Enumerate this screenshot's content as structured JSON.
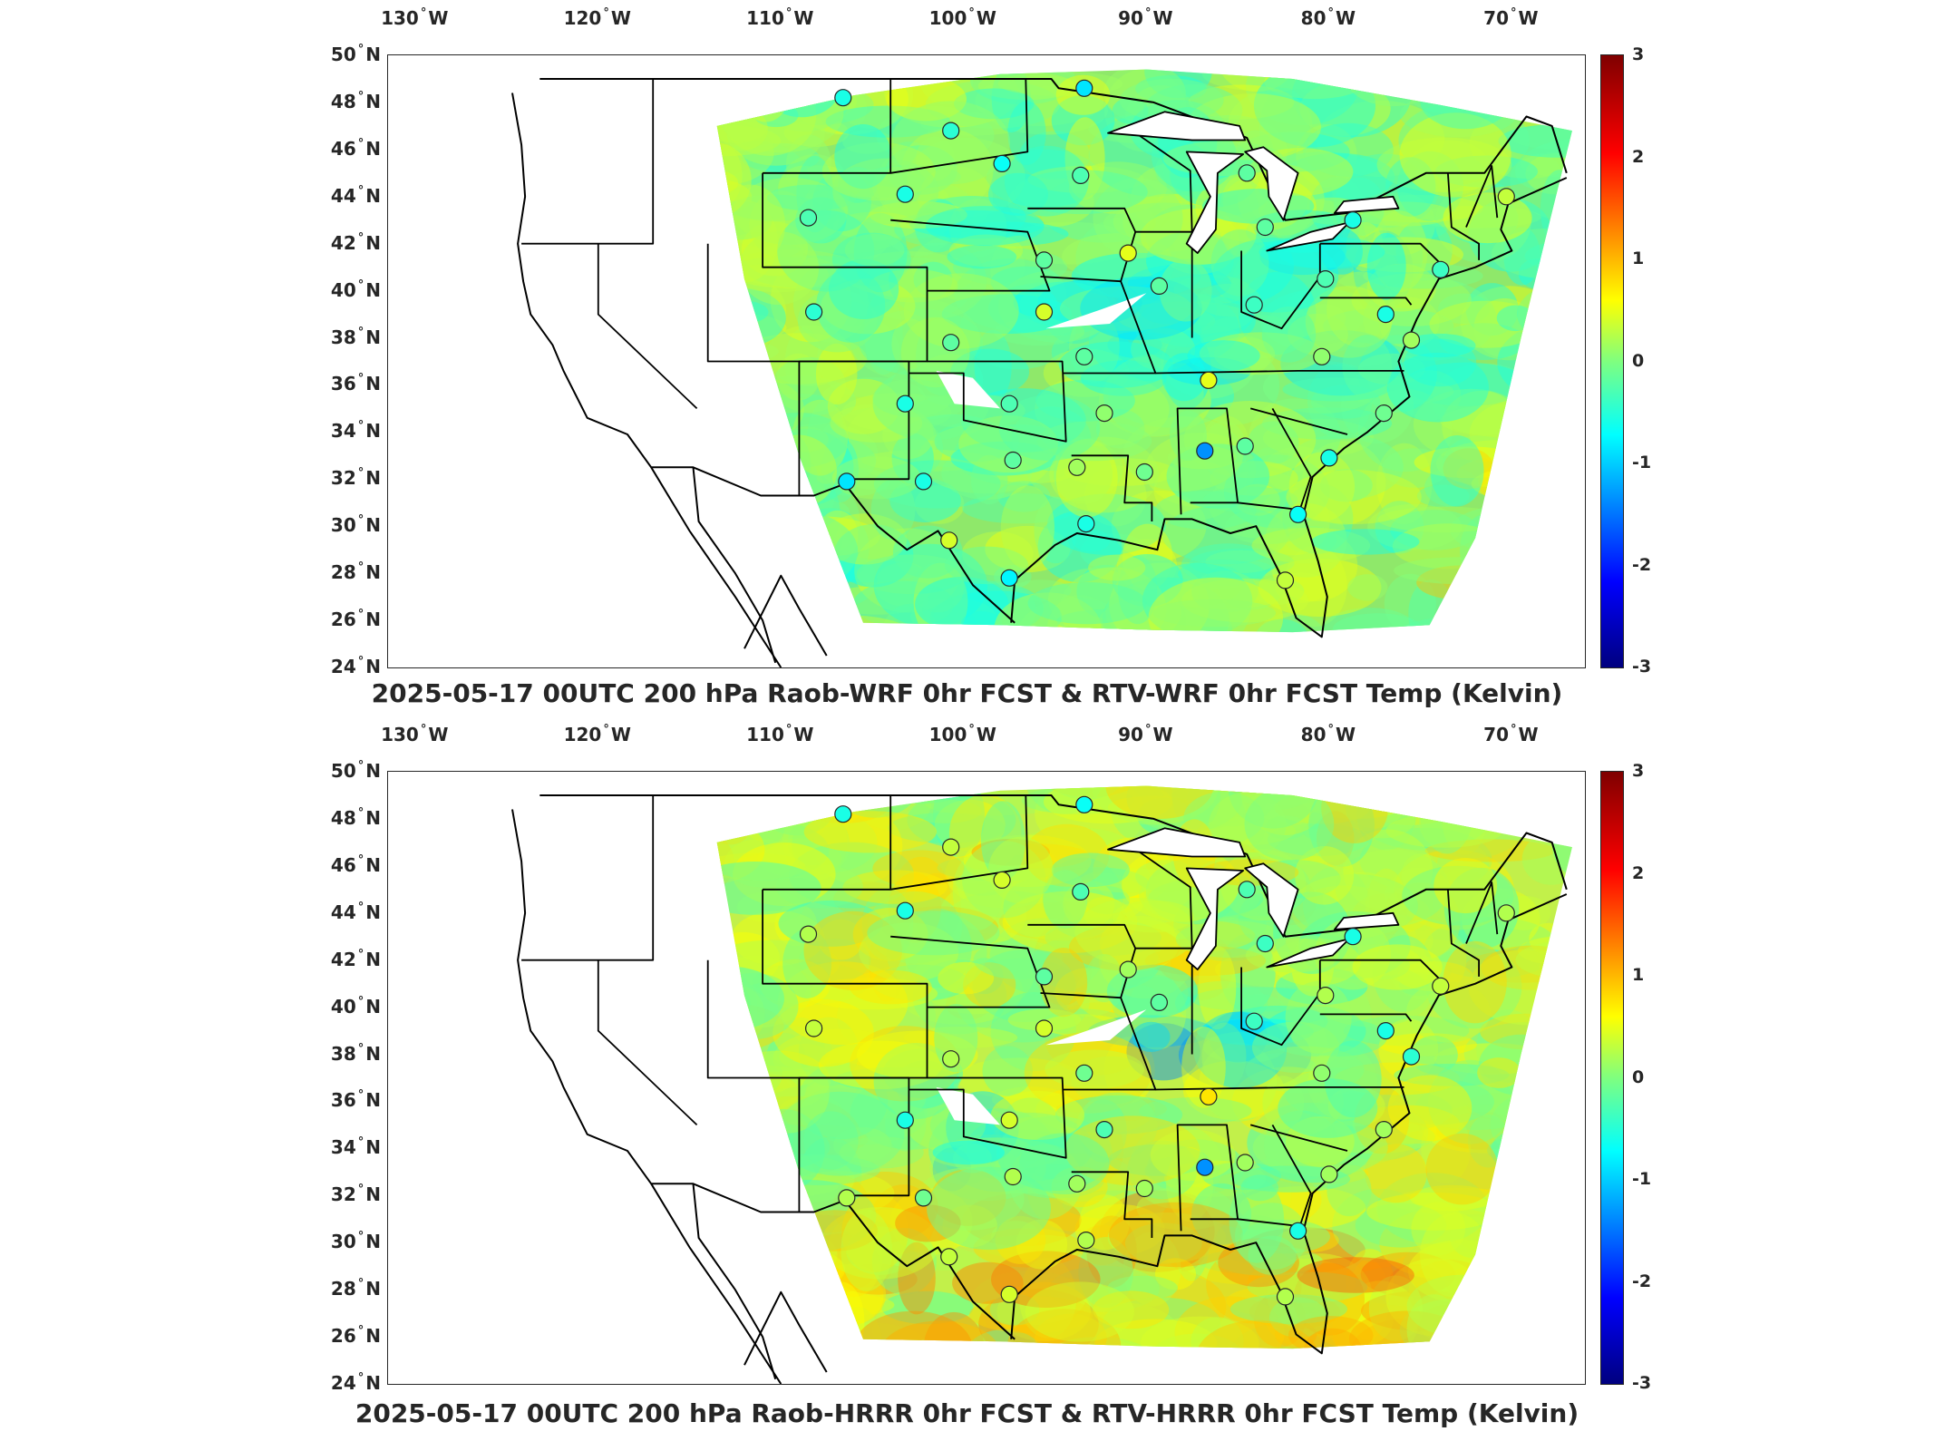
{
  "panels": [
    {
      "title": "2025-05-17 00UTC 200 hPa Raob-WRF 0hr FCST & RTV-WRF 0hr FCST Temp (Kelvin)",
      "variant": "wrf"
    },
    {
      "title": "2025-05-17 00UTC 200 hPa Raob-HRRR 0hr FCST & RTV-HRRR 0hr FCST Temp (Kelvin)",
      "variant": "hrrr"
    }
  ],
  "axes": {
    "lon_ticks": [
      "130",
      "120",
      "110",
      "100",
      "90",
      "80",
      "70"
    ],
    "lon_suffix": "W",
    "lat_ticks": [
      "50",
      "48",
      "46",
      "44",
      "42",
      "40",
      "38",
      "36",
      "34",
      "32",
      "30",
      "28",
      "26",
      "24"
    ],
    "lat_suffix": "N",
    "degree_symbol": "°"
  },
  "colorbar": {
    "ticks": [
      "3",
      "2",
      "1",
      "0",
      "-1",
      "-2",
      "-3"
    ],
    "range": [
      -3,
      3
    ],
    "colormap": "jet"
  },
  "map": {
    "lon_range": [
      -131.5,
      -66
    ],
    "lat_range": [
      24,
      50
    ],
    "domain": "CONUS"
  },
  "stations": [
    {
      "lon": -106.6,
      "lat": 48.2,
      "wrf": -0.6,
      "hrrr": -0.6
    },
    {
      "lon": -93.4,
      "lat": 48.6,
      "wrf": -0.9,
      "hrrr": -0.7
    },
    {
      "lon": -100.7,
      "lat": 46.8,
      "wrf": -0.5,
      "hrrr": 0.4
    },
    {
      "lon": -97.9,
      "lat": 45.4,
      "wrf": -0.7,
      "hrrr": 0.5
    },
    {
      "lon": -93.6,
      "lat": 44.9,
      "wrf": -0.3,
      "hrrr": -0.3
    },
    {
      "lon": -103.2,
      "lat": 44.1,
      "wrf": -0.6,
      "hrrr": -0.6
    },
    {
      "lon": -108.5,
      "lat": 43.1,
      "wrf": -0.3,
      "hrrr": 0.3
    },
    {
      "lon": -95.6,
      "lat": 41.3,
      "wrf": -0.2,
      "hrrr": -0.2
    },
    {
      "lon": -91.0,
      "lat": 41.6,
      "wrf": 0.6,
      "hrrr": 0.2
    },
    {
      "lon": -84.5,
      "lat": 45.0,
      "wrf": -0.2,
      "hrrr": -0.3
    },
    {
      "lon": -83.5,
      "lat": 42.7,
      "wrf": -0.2,
      "hrrr": -0.4
    },
    {
      "lon": -78.7,
      "lat": 43.0,
      "wrf": -0.6,
      "hrrr": -0.6
    },
    {
      "lon": -89.3,
      "lat": 40.2,
      "wrf": -0.2,
      "hrrr": -0.2
    },
    {
      "lon": -84.1,
      "lat": 39.4,
      "wrf": -0.4,
      "hrrr": -0.4
    },
    {
      "lon": -80.2,
      "lat": 40.5,
      "wrf": -0.3,
      "hrrr": 0.3
    },
    {
      "lon": -73.9,
      "lat": 40.9,
      "wrf": -0.4,
      "hrrr": 0.4
    },
    {
      "lon": -76.9,
      "lat": 39.0,
      "wrf": -0.6,
      "hrrr": -0.6
    },
    {
      "lon": -108.2,
      "lat": 39.1,
      "wrf": -0.5,
      "hrrr": 0.4
    },
    {
      "lon": -100.7,
      "lat": 37.8,
      "wrf": -0.2,
      "hrrr": 0.3
    },
    {
      "lon": -95.6,
      "lat": 39.1,
      "wrf": 0.5,
      "hrrr": 0.5
    },
    {
      "lon": -93.4,
      "lat": 37.2,
      "wrf": -0.2,
      "hrrr": -0.1
    },
    {
      "lon": -80.4,
      "lat": 37.2,
      "wrf": 0.1,
      "hrrr": 0.1
    },
    {
      "lon": -86.6,
      "lat": 36.2,
      "wrf": 0.6,
      "hrrr": 0.9
    },
    {
      "lon": -75.5,
      "lat": 37.9,
      "wrf": 0.2,
      "hrrr": -0.5
    },
    {
      "lon": -103.2,
      "lat": 35.2,
      "wrf": -0.6,
      "hrrr": -0.6
    },
    {
      "lon": -97.5,
      "lat": 35.2,
      "wrf": -0.3,
      "hrrr": 0.5
    },
    {
      "lon": -92.3,
      "lat": 34.8,
      "wrf": 0.1,
      "hrrr": -0.3
    },
    {
      "lon": -77.0,
      "lat": 34.8,
      "wrf": -0.1,
      "hrrr": 0.2
    },
    {
      "lon": -86.8,
      "lat": 33.2,
      "wrf": -1.4,
      "hrrr": -1.4
    },
    {
      "lon": -84.6,
      "lat": 33.4,
      "wrf": -0.2,
      "hrrr": 0.2
    },
    {
      "lon": -80.0,
      "lat": 32.9,
      "wrf": -0.6,
      "hrrr": 0.2
    },
    {
      "lon": -97.3,
      "lat": 32.8,
      "wrf": -0.2,
      "hrrr": 0.3
    },
    {
      "lon": -93.8,
      "lat": 32.5,
      "wrf": 0.2,
      "hrrr": 0.2
    },
    {
      "lon": -90.1,
      "lat": 32.3,
      "wrf": -0.1,
      "hrrr": 0.2
    },
    {
      "lon": -106.4,
      "lat": 31.9,
      "wrf": -0.9,
      "hrrr": 0.3
    },
    {
      "lon": -102.2,
      "lat": 31.9,
      "wrf": -0.6,
      "hrrr": -0.1
    },
    {
      "lon": -93.3,
      "lat": 30.1,
      "wrf": -0.6,
      "hrrr": 0.3
    },
    {
      "lon": -81.7,
      "lat": 30.5,
      "wrf": -0.7,
      "hrrr": -0.6
    },
    {
      "lon": -100.8,
      "lat": 29.4,
      "wrf": 0.5,
      "hrrr": 0.4
    },
    {
      "lon": -97.5,
      "lat": 27.8,
      "wrf": -0.8,
      "hrrr": 0.5
    },
    {
      "lon": -82.4,
      "lat": 27.7,
      "wrf": 0.4,
      "hrrr": 0.3
    },
    {
      "lon": -70.3,
      "lat": 44.0,
      "wrf": 0.4,
      "hrrr": 0.3
    }
  ]
}
